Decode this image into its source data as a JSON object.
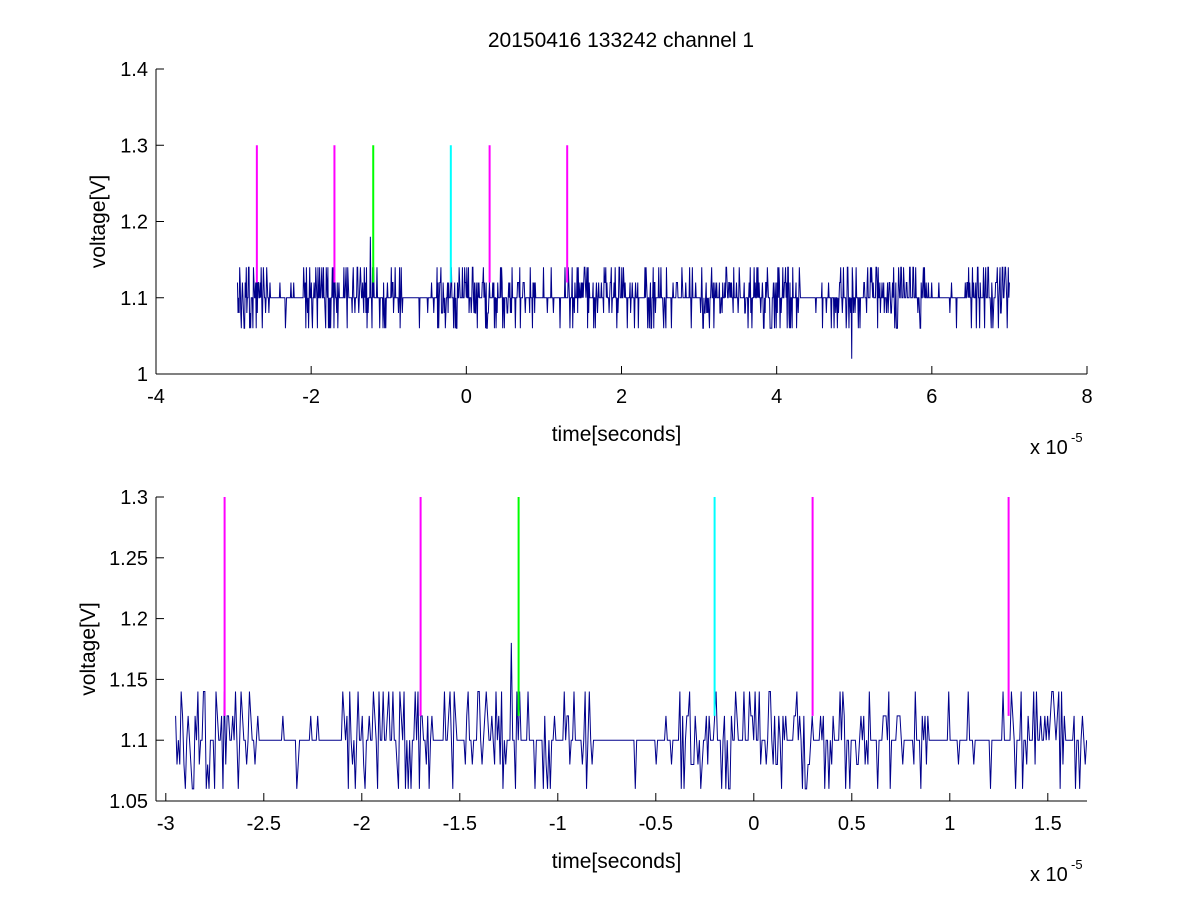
{
  "title": "20150416 133242 channel 1",
  "colors": {
    "signal": "#00008b",
    "magenta": "#ff00ff",
    "green": "#00ff00",
    "cyan": "#00ffff"
  },
  "chart_data": [
    {
      "type": "line",
      "xlabel": "time[seconds]",
      "ylabel": "voltage[V]",
      "x_multiplier_label": "x 10",
      "x_multiplier_exponent": "-5",
      "xlim": [
        -4,
        8
      ],
      "ylim": [
        1.0,
        1.4
      ],
      "xticks": [
        "-4",
        "-2",
        "0",
        "2",
        "4",
        "6",
        "8"
      ],
      "yticks": [
        "1",
        "1.1",
        "1.2",
        "1.3",
        "1.4"
      ],
      "grid": false,
      "series": [
        {
          "style": "signal",
          "x_range": [
            -2.95,
            7.0
          ],
          "levels": [
            1.06,
            1.08,
            1.1,
            1.12,
            1.14
          ],
          "baseline": 1.1,
          "notable_points": [
            {
              "x": -1.24,
              "y": 1.18
            },
            {
              "x": 4.97,
              "y": 1.02
            }
          ]
        }
      ],
      "markers": [
        {
          "x": -2.7,
          "y_range": [
            1.12,
            1.3
          ],
          "color": "magenta"
        },
        {
          "x": -1.7,
          "y_range": [
            1.12,
            1.3
          ],
          "color": "magenta"
        },
        {
          "x": -1.2,
          "y_range": [
            1.12,
            1.3
          ],
          "color": "green"
        },
        {
          "x": -0.2,
          "y_range": [
            1.12,
            1.3
          ],
          "color": "cyan"
        },
        {
          "x": 0.3,
          "y_range": [
            1.12,
            1.3
          ],
          "color": "magenta"
        },
        {
          "x": 1.3,
          "y_range": [
            1.12,
            1.3
          ],
          "color": "magenta"
        }
      ]
    },
    {
      "type": "line",
      "xlabel": "time[seconds]",
      "ylabel": "voltage[V]",
      "x_multiplier_label": "x 10",
      "x_multiplier_exponent": "-5",
      "xlim": [
        -3.05,
        1.7
      ],
      "ylim": [
        1.05,
        1.3
      ],
      "xticks": [
        "-3",
        "-2.5",
        "-2",
        "-1.5",
        "-1",
        "-0.5",
        "0",
        "0.5",
        "1",
        "1.5"
      ],
      "xtick_values": [
        -3,
        -2.5,
        -2,
        -1.5,
        -1,
        -0.5,
        0,
        0.5,
        1,
        1.5
      ],
      "yticks": [
        "1.05",
        "1.1",
        "1.15",
        "1.2",
        "1.25",
        "1.3"
      ],
      "ytick_values": [
        1.05,
        1.1,
        1.15,
        1.2,
        1.25,
        1.3
      ],
      "grid": false,
      "series": [
        {
          "style": "signal",
          "x_range": [
            -2.95,
            1.7
          ],
          "levels": [
            1.06,
            1.08,
            1.1,
            1.12,
            1.14
          ],
          "baseline": 1.1,
          "notable_points": [
            {
              "x": -1.24,
              "y": 1.18
            }
          ]
        }
      ],
      "markers": [
        {
          "x": -2.7,
          "y_range": [
            1.12,
            1.3
          ],
          "color": "magenta"
        },
        {
          "x": -1.7,
          "y_range": [
            1.12,
            1.3
          ],
          "color": "magenta"
        },
        {
          "x": -1.2,
          "y_range": [
            1.12,
            1.3
          ],
          "color": "green"
        },
        {
          "x": -0.2,
          "y_range": [
            1.12,
            1.3
          ],
          "color": "cyan"
        },
        {
          "x": 0.3,
          "y_range": [
            1.12,
            1.3
          ],
          "color": "magenta"
        },
        {
          "x": 1.3,
          "y_range": [
            1.12,
            1.3
          ],
          "color": "magenta"
        }
      ]
    }
  ]
}
